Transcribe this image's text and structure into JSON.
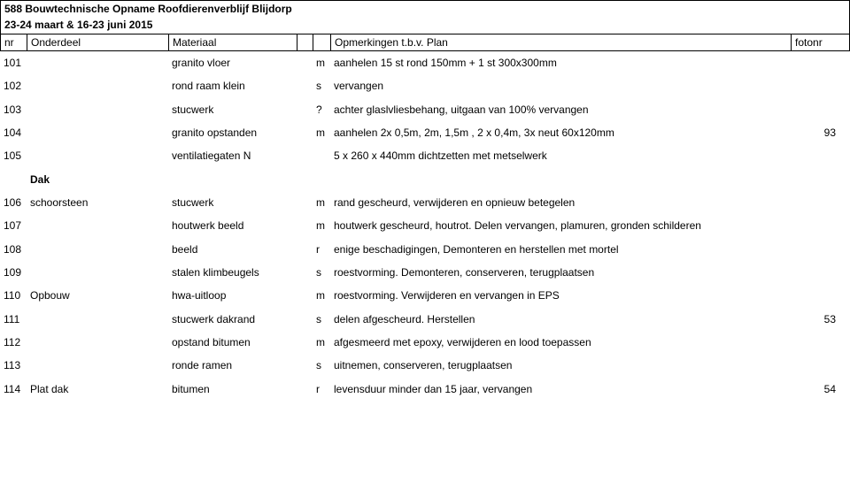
{
  "title": {
    "line1": "588 Bouwtechnische Opname Roofdierenverblijf Blijdorp",
    "line2": "23-24 maart & 16-23 juni 2015"
  },
  "header": {
    "nr": "nr",
    "onderdeel": "Onderdeel",
    "materiaal": "Materiaal",
    "opmerkingen": "Opmerkingen t.b.v. Plan",
    "fotonr": "fotonr"
  },
  "rows": [
    {
      "nr": "101",
      "onderdeel": "",
      "materiaal": "granito vloer",
      "flag": "m",
      "opm": "aanhelen 15 st rond 150mm + 1 st 300x300mm",
      "foto": ""
    },
    {
      "nr": "102",
      "onderdeel": "",
      "materiaal": "rond raam klein",
      "flag": "s",
      "opm": "vervangen",
      "foto": ""
    },
    {
      "nr": "103",
      "onderdeel": "",
      "materiaal": "stucwerk",
      "flag": "?",
      "opm": "achter glaslvliesbehang, uitgaan van 100% vervangen",
      "foto": ""
    },
    {
      "nr": "104",
      "onderdeel": "",
      "materiaal": "granito opstanden",
      "flag": "m",
      "opm": "aanhelen 2x 0,5m, 2m, 1,5m , 2 x 0,4m, 3x neut 60x120mm",
      "foto": "93"
    },
    {
      "nr": "105",
      "onderdeel": "",
      "materiaal": "ventilatiegaten N",
      "flag": "",
      "opm": "5 x 260 x 440mm dichtzetten met metselwerk",
      "foto": ""
    },
    {
      "section": "Dak"
    },
    {
      "nr": "106",
      "onderdeel": "schoorsteen",
      "materiaal": "stucwerk",
      "flag": "m",
      "opm": "rand gescheurd, verwijderen en opnieuw betegelen",
      "foto": ""
    },
    {
      "nr": "107",
      "onderdeel": "",
      "materiaal": "houtwerk beeld",
      "flag": "m",
      "opm": "houtwerk gescheurd, houtrot. Delen vervangen, plamuren, gronden schilderen",
      "foto": ""
    },
    {
      "nr": "108",
      "onderdeel": "",
      "materiaal": "beeld",
      "flag": "r",
      "opm": "enige beschadigingen, Demonteren en herstellen met mortel",
      "foto": ""
    },
    {
      "nr": "109",
      "onderdeel": "",
      "materiaal": "stalen klimbeugels",
      "flag": "s",
      "opm": "roestvorming. Demonteren, conserveren, terugplaatsen",
      "foto": ""
    },
    {
      "nr": "110",
      "onderdeel": "Opbouw",
      "materiaal": "hwa-uitloop",
      "flag": "m",
      "opm": "roestvorming. Verwijderen en vervangen in EPS",
      "foto": ""
    },
    {
      "nr": "111",
      "onderdeel": "",
      "materiaal": "stucwerk dakrand",
      "flag": "s",
      "opm": "delen afgescheurd. Herstellen",
      "foto": "53"
    },
    {
      "nr": "112",
      "onderdeel": "",
      "materiaal": "opstand bitumen",
      "flag": "m",
      "opm": "afgesmeerd met epoxy, verwijderen en lood toepassen",
      "foto": ""
    },
    {
      "nr": "113",
      "onderdeel": "",
      "materiaal": "ronde ramen",
      "flag": "s",
      "opm": "uitnemen, conserveren, terugplaatsen",
      "foto": ""
    },
    {
      "nr": "114",
      "onderdeel": "Plat dak",
      "materiaal": "bitumen",
      "flag": "r",
      "opm": "levensduur minder dan 15 jaar, vervangen",
      "foto": "54"
    }
  ]
}
